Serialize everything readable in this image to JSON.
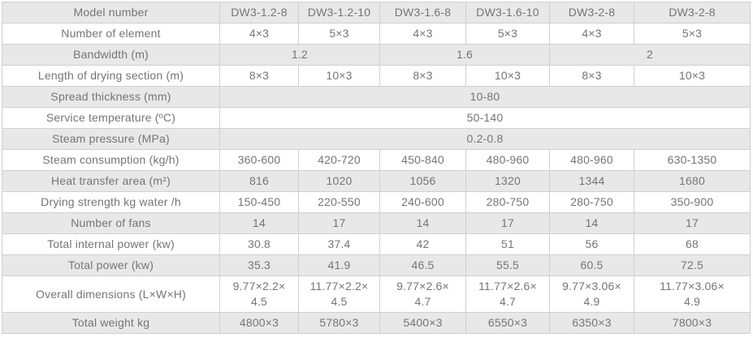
{
  "colors": {
    "row_stripe": "#e8e8e8",
    "row_white": "#ffffff",
    "border": "#d0d0d0",
    "text": "#757575",
    "page_bg": "#ffffff"
  },
  "table": {
    "rows": [
      {
        "label": "Model number",
        "cells": [
          "DW3-1.2-8",
          "DW3-1.2-10",
          "DW3-1.6-8",
          "DW3-1.6-10",
          "DW3-2-8",
          "DW3-2-8"
        ]
      },
      {
        "label": "Number of element",
        "cells": [
          "4×3",
          "5×3",
          "4×3",
          "5×3",
          "4×3",
          "5×3"
        ]
      },
      {
        "label": "Bandwidth (m)",
        "span": 2,
        "cells": [
          "1.2",
          "1.6",
          "2"
        ]
      },
      {
        "label": "Length of drying section (m)",
        "cells": [
          "8×3",
          "10×3",
          "8×3",
          "10×3",
          "8×3",
          "10×3"
        ]
      },
      {
        "label": "Spread thickness (mm)",
        "span": 6,
        "cells": [
          "10-80"
        ]
      },
      {
        "label": "Service temperature (ºC)",
        "span": 6,
        "cells": [
          "50-140"
        ]
      },
      {
        "label": "Steam pressure (MPa)",
        "span": 6,
        "cells": [
          "0.2-0.8"
        ]
      },
      {
        "label": "Steam consumption (kg/h)",
        "cells": [
          "360-600",
          "420-720",
          "450-840",
          "480-960",
          "480-960",
          "630-1350"
        ]
      },
      {
        "label": "Heat transfer area (m²)",
        "cells": [
          "816",
          "1020",
          "1056",
          "1320",
          "1344",
          "1680"
        ]
      },
      {
        "label": "Drying strength kg water /h",
        "cells": [
          "150-450",
          "220-550",
          "240-600",
          "280-750",
          "280-750",
          "350-900"
        ]
      },
      {
        "label": "Number of fans",
        "cells": [
          "14",
          "17",
          "14",
          "17",
          "14",
          "17"
        ]
      },
      {
        "label": "Total internal power (kw)",
        "cells": [
          "30.8",
          "37.4",
          "42",
          "51",
          "56",
          "68"
        ]
      },
      {
        "label": "Total power (kw)",
        "cells": [
          "35.3",
          "41.9",
          "46.5",
          "55.5",
          "60.5",
          "72.5"
        ]
      },
      {
        "label": "Overall dimensions (L×W×H)",
        "cells": [
          "9.77×2.2×\n4.5",
          "11.77×2.2×\n4.5",
          "9.77×2.6×\n4.7",
          "11.77×2.6×\n4.7",
          "9.77×3.06×\n4.9",
          "11.77×3.06×\n4.9"
        ]
      },
      {
        "label": "Total weight kg",
        "cells": [
          "4800×3",
          "5780×3",
          "5400×3",
          "6550×3",
          "6350×3",
          "7800×3"
        ]
      }
    ]
  }
}
